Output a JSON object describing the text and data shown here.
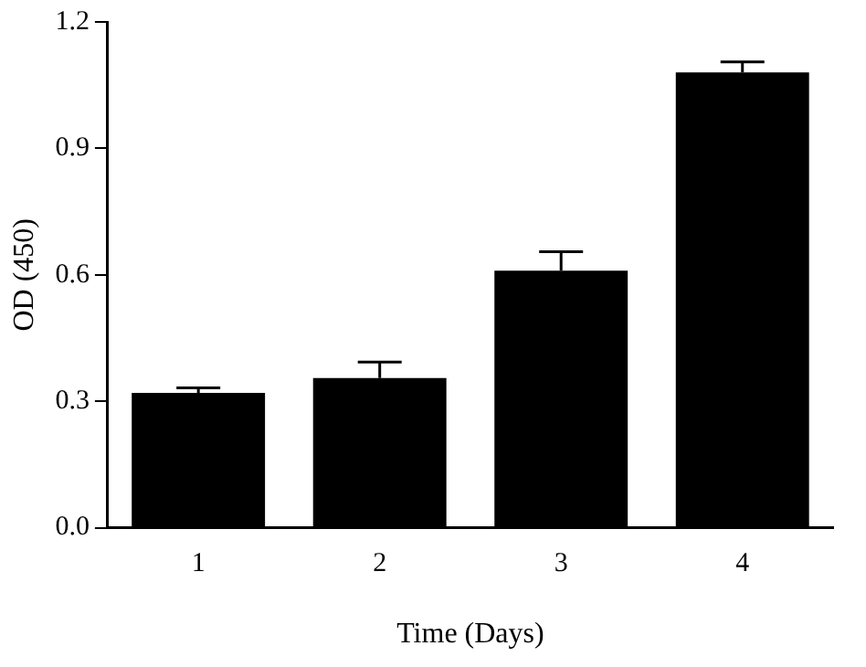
{
  "chart_data": {
    "type": "bar",
    "xlabel": "Time (Days)",
    "ylabel": "OD (450)",
    "categories": [
      "1",
      "2",
      "3",
      "4"
    ],
    "values": [
      0.32,
      0.355,
      0.61,
      1.08
    ],
    "errors": [
      0.012,
      0.038,
      0.045,
      0.025
    ],
    "color": "#000000",
    "ylim": [
      0,
      1.2
    ],
    "yticks": [
      {
        "value": 0,
        "label": "0.0"
      },
      {
        "value": 0.3,
        "label": "0.3"
      },
      {
        "value": 0.6,
        "label": "0.6"
      },
      {
        "value": 0.9,
        "label": "0.9"
      },
      {
        "value": 1.2,
        "label": "1.2"
      }
    ],
    "grid": false,
    "legend": false
  }
}
